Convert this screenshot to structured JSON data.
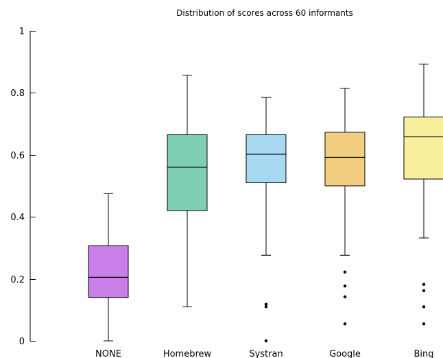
{
  "chart_data": {
    "type": "box",
    "title": "Distribution of scores across 60 informants",
    "xlabel": "",
    "ylabel": "",
    "ylim": [
      0,
      1
    ],
    "yticks": [
      0,
      0.2,
      0.4,
      0.6,
      0.8,
      1
    ],
    "ytick_labels": [
      "0",
      "0.2",
      "0.4",
      "0.6",
      "0.8",
      "1"
    ],
    "grid": false,
    "legend": "none",
    "categories": [
      "NONE",
      "Homebrew",
      "Systran",
      "Google",
      "Bing"
    ],
    "boxes": [
      {
        "name": "NONE",
        "color": "#c97ee8",
        "whisker_low": 0.0,
        "q1": 0.14,
        "median": 0.205,
        "q3": 0.307,
        "whisker_high": 0.475,
        "outliers": []
      },
      {
        "name": "Homebrew",
        "color": "#7ecfb6",
        "whisker_low": 0.11,
        "q1": 0.42,
        "median": 0.56,
        "q3": 0.665,
        "whisker_high": 0.857,
        "outliers": []
      },
      {
        "name": "Systran",
        "color": "#a9d8f2",
        "whisker_low": 0.276,
        "q1": 0.51,
        "median": 0.602,
        "q3": 0.665,
        "whisker_high": 0.785,
        "outliers": [
          0.118,
          0.11,
          0.0
        ]
      },
      {
        "name": "Google",
        "color": "#f2cd80",
        "whisker_low": 0.276,
        "q1": 0.5,
        "median": 0.592,
        "q3": 0.673,
        "whisker_high": 0.815,
        "outliers": [
          0.222,
          0.177,
          0.142,
          0.055
        ]
      },
      {
        "name": "Bing",
        "color": "#f7ef9e",
        "whisker_low": 0.332,
        "q1": 0.522,
        "median": 0.658,
        "q3": 0.722,
        "whisker_high": 0.893,
        "outliers": [
          0.182,
          0.162,
          0.11,
          0.055
        ]
      }
    ]
  }
}
